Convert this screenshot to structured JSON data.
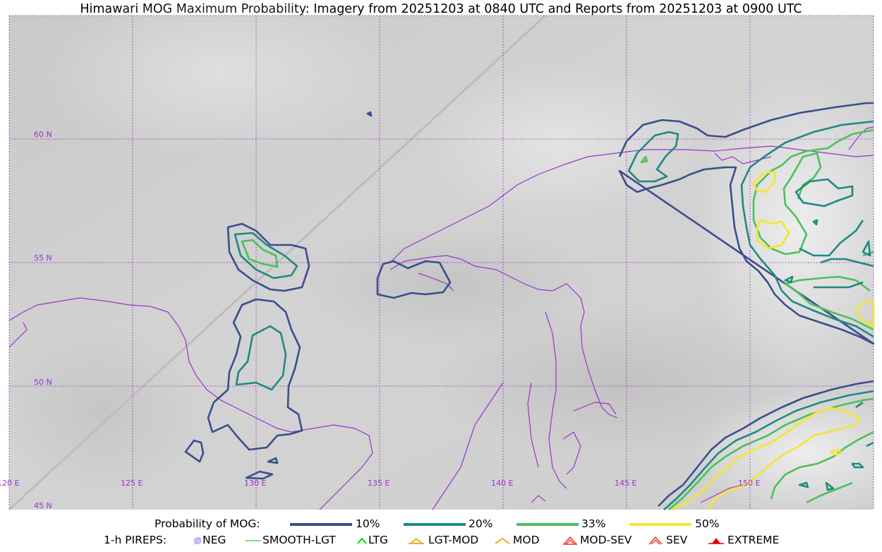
{
  "title": "Himawari MOG Maximum Probability: Imagery from 20251203 at 0840 UTC and Reports from 20251203 at 0900 UTC",
  "map": {
    "latitude_labels": [
      "60 N",
      "55 N",
      "50 N",
      "45 N"
    ],
    "longitude_labels": [
      "120 E",
      "125 E",
      "130 E",
      "135 E",
      "140 E",
      "145 E",
      "150 E"
    ],
    "gridline_color": "#9933cc",
    "coastline_color": "#9933cc"
  },
  "legend": {
    "probability_title": "Probability of MOG:",
    "probability_levels": [
      {
        "label": "10%",
        "color": "#3b4e8c"
      },
      {
        "label": "20%",
        "color": "#1f8a80"
      },
      {
        "label": "33%",
        "color": "#4cc05c"
      },
      {
        "label": "50%",
        "color": "#f5e62a"
      }
    ],
    "pireps_title": "1-h PIREPS:",
    "pireps": [
      {
        "label": "NEG",
        "icon": "neg-icon",
        "color": "#b0b0ff"
      },
      {
        "label": "SMOOTH-LGT",
        "icon": "smooth-lgt-icon",
        "color": "#33cc33"
      },
      {
        "label": "LTG",
        "icon": "ltg-icon",
        "color": "#00dd00"
      },
      {
        "label": "LGT-MOD",
        "icon": "lgt-mod-icon",
        "color": "#f0b020"
      },
      {
        "label": "MOD",
        "icon": "mod-icon",
        "color": "#f0b020"
      },
      {
        "label": "MOD-SEV",
        "icon": "mod-sev-icon",
        "color": "#ee3333"
      },
      {
        "label": "SEV",
        "icon": "sev-icon",
        "color": "#ee3333"
      },
      {
        "label": "EXTREME",
        "icon": "extreme-icon",
        "color": "#dd0000"
      }
    ]
  }
}
